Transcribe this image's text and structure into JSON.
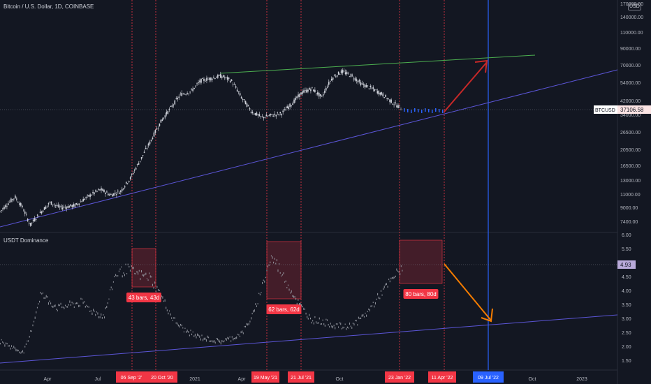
{
  "header": {
    "title": "Bitcoin / U.S. Dollar, 1D, COINBASE",
    "currency": "USD"
  },
  "indicator": {
    "title": "USDT Dominance"
  },
  "colors": {
    "background": "#131722",
    "grid": "#1e222d",
    "text": "#b2b5be",
    "candle": "#d1d4dc",
    "dominance": "#9598a1",
    "forecast": "#2962ff",
    "trend_up": "#4caf50",
    "trend_channel": "#5b55d6",
    "vline_red": "#f23645",
    "vline_blue": "#2962ff",
    "arrow_red": "#c62828",
    "arrow_orange": "#f57c00",
    "box_fill": "rgba(242,54,69,0.22)",
    "box_stroke": "#f23645",
    "label_red": "#f23645",
    "label_blue": "#2962ff"
  },
  "chart_data": [
    {
      "type": "candlestick",
      "title": "Bitcoin / U.S. Dollar, 1D, COINBASE",
      "y_scale": "log",
      "y_ticks": [
        "170000.00",
        "140000.00",
        "110000.00",
        "90000.00",
        "70000.00",
        "54000.00",
        "42000.00",
        "34000.00",
        "26500.00",
        "20500.00",
        "16500.00",
        "13000.00",
        "11000.00",
        "9000.00",
        "7400.00"
      ],
      "last_price": {
        "symbol": "BTCUSD",
        "value": "37106.58"
      },
      "x_ticks": [
        "Apr",
        "Jul",
        "2021",
        "Apr",
        "Oct",
        "Oct",
        "2023"
      ],
      "x_markers": [
        {
          "date": "06 Sep '2'"
        },
        {
          "date": "20 Oct '20"
        },
        {
          "date": "19 May '21"
        },
        {
          "date": "21 Jul '21"
        },
        {
          "date": "23 Jan '22"
        },
        {
          "date": "11 Apr '22"
        },
        {
          "date": "09 Jul '22",
          "color": "blue"
        }
      ],
      "series_path": [
        [
          0.0,
          8500
        ],
        [
          0.03,
          10500
        ],
        [
          0.045,
          9000
        ],
        [
          0.06,
          7000
        ],
        [
          0.075,
          8000
        ],
        [
          0.1,
          9700
        ],
        [
          0.12,
          9000
        ],
        [
          0.15,
          9300
        ],
        [
          0.18,
          10800
        ],
        [
          0.2,
          11700
        ],
        [
          0.22,
          10800
        ],
        [
          0.24,
          11400
        ],
        [
          0.26,
          13800
        ],
        [
          0.28,
          18000
        ],
        [
          0.3,
          23500
        ],
        [
          0.32,
          31000
        ],
        [
          0.34,
          38000
        ],
        [
          0.36,
          46000
        ],
        [
          0.38,
          48000
        ],
        [
          0.4,
          56000
        ],
        [
          0.42,
          58000
        ],
        [
          0.44,
          60000
        ],
        [
          0.46,
          56000
        ],
        [
          0.48,
          44000
        ],
        [
          0.5,
          36000
        ],
        [
          0.52,
          33000
        ],
        [
          0.54,
          34000
        ],
        [
          0.56,
          35000
        ],
        [
          0.58,
          40000
        ],
        [
          0.6,
          47000
        ],
        [
          0.62,
          50000
        ],
        [
          0.64,
          44000
        ],
        [
          0.66,
          58000
        ],
        [
          0.68,
          64000
        ],
        [
          0.7,
          60000
        ],
        [
          0.72,
          53000
        ],
        [
          0.74,
          50000
        ],
        [
          0.76,
          46000
        ],
        [
          0.78,
          41000
        ],
        [
          0.8,
          37106
        ]
      ]
    },
    {
      "type": "line",
      "title": "USDT Dominance",
      "y_ticks": [
        "6.00",
        "5.50",
        "5.00",
        "4.50",
        "4.00",
        "3.50",
        "3.00",
        "2.50",
        "2.00",
        "1.50"
      ],
      "last_value": "4.93",
      "series_path": [
        [
          0.0,
          2.2
        ],
        [
          0.02,
          2.0
        ],
        [
          0.04,
          1.8
        ],
        [
          0.05,
          2.3
        ],
        [
          0.07,
          3.9
        ],
        [
          0.1,
          3.4
        ],
        [
          0.12,
          3.5
        ],
        [
          0.14,
          3.6
        ],
        [
          0.16,
          3.3
        ],
        [
          0.18,
          3.1
        ],
        [
          0.2,
          4.6
        ],
        [
          0.22,
          4.8
        ],
        [
          0.24,
          4.6
        ],
        [
          0.26,
          4.5
        ],
        [
          0.28,
          3.8
        ],
        [
          0.3,
          3.0
        ],
        [
          0.32,
          2.6
        ],
        [
          0.34,
          2.4
        ],
        [
          0.36,
          2.3
        ],
        [
          0.38,
          2.2
        ],
        [
          0.4,
          2.3
        ],
        [
          0.42,
          2.5
        ],
        [
          0.44,
          3.2
        ],
        [
          0.455,
          4.2
        ],
        [
          0.47,
          5.2
        ],
        [
          0.48,
          5.0
        ],
        [
          0.5,
          4.2
        ],
        [
          0.52,
          3.5
        ],
        [
          0.54,
          3.0
        ],
        [
          0.56,
          2.9
        ],
        [
          0.58,
          2.8
        ],
        [
          0.6,
          2.7
        ],
        [
          0.62,
          2.9
        ],
        [
          0.64,
          3.3
        ],
        [
          0.66,
          3.9
        ],
        [
          0.68,
          4.4
        ],
        [
          0.7,
          4.93
        ]
      ],
      "measure_labels": [
        "43 bars, 43d",
        "62 bars, 62d",
        "80 bars, 80d"
      ]
    }
  ]
}
